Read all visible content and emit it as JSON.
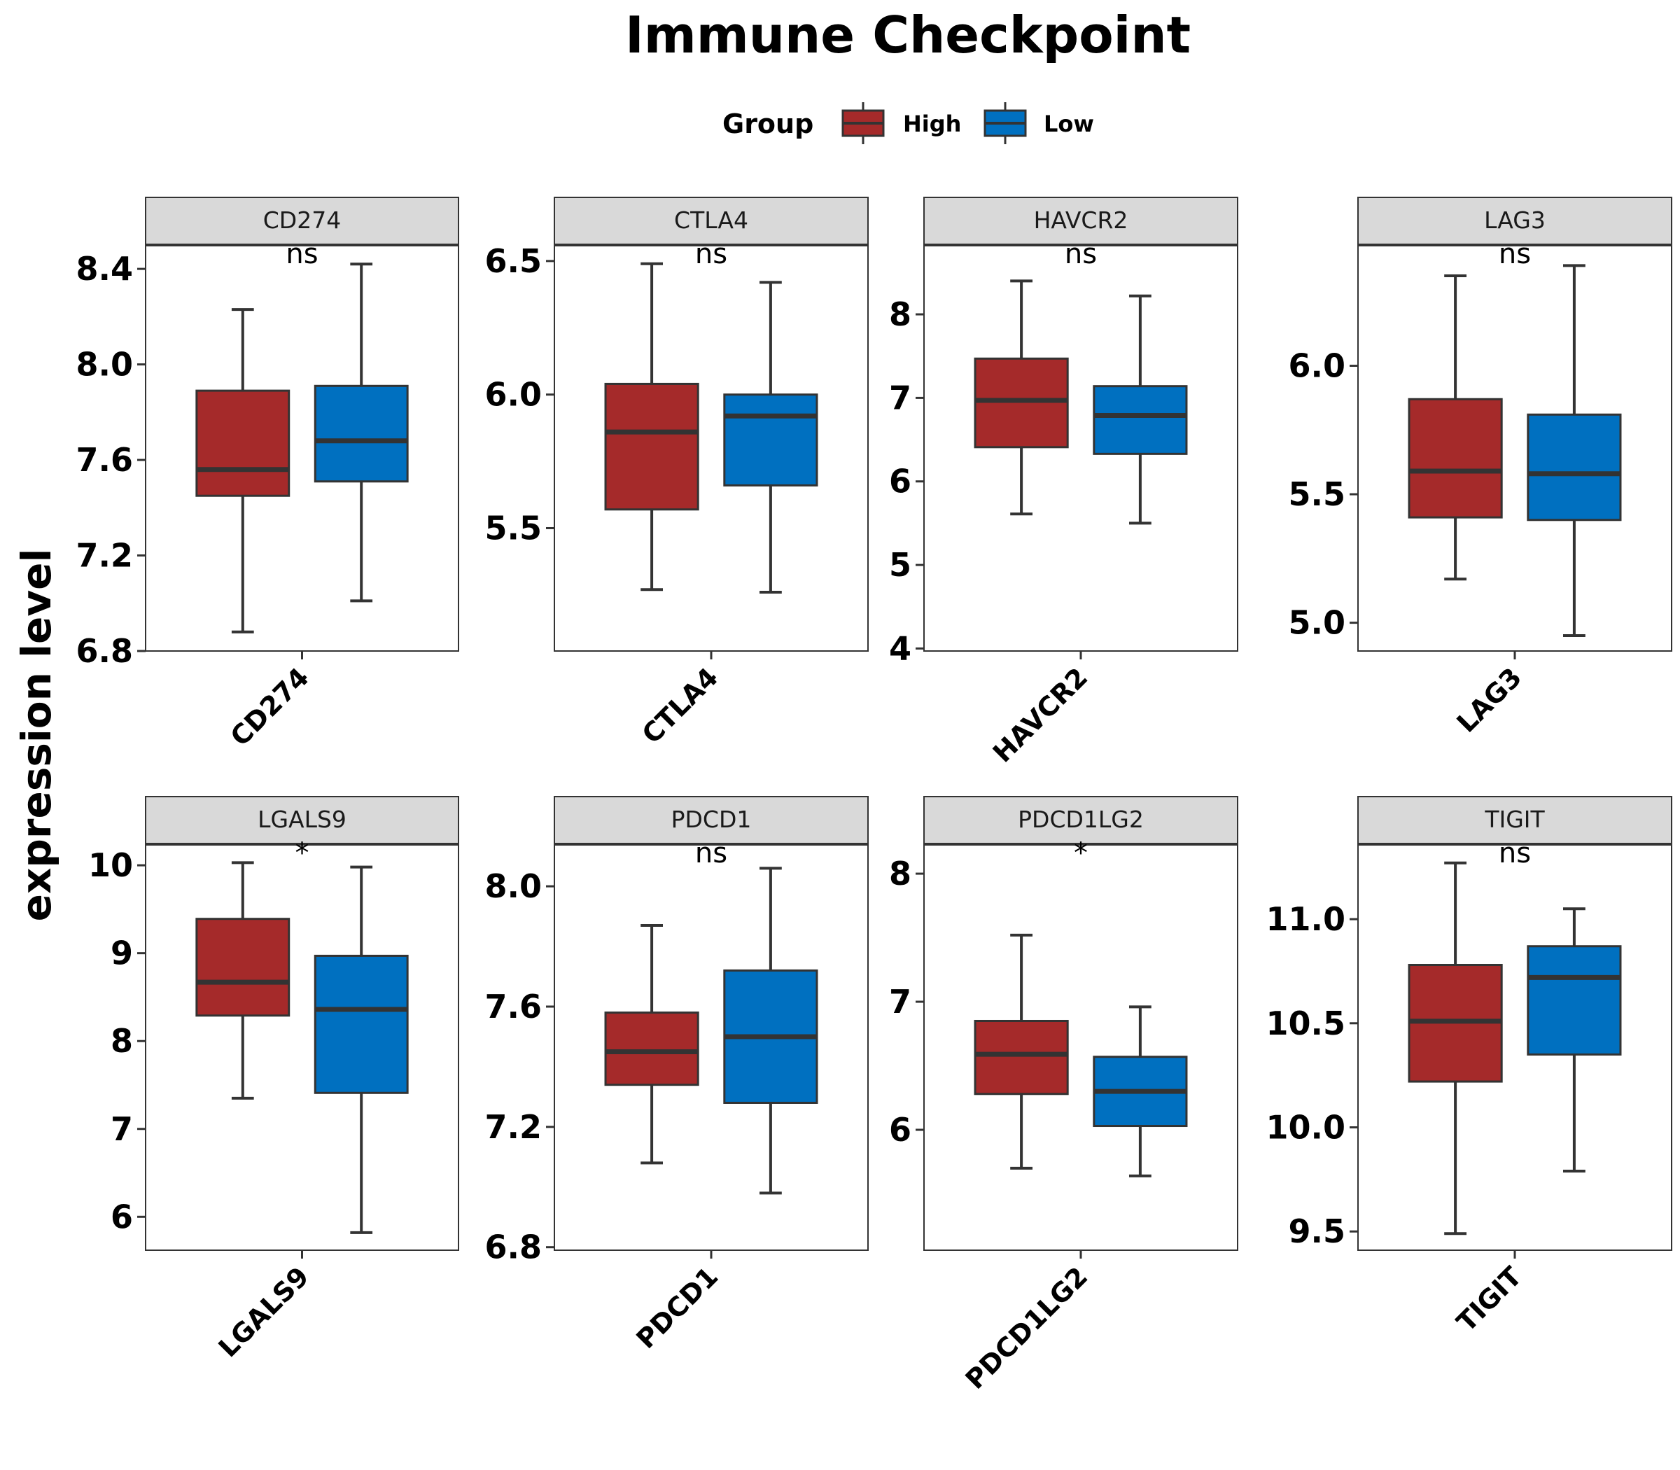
{
  "title": "Immune Checkpoint",
  "legend": {
    "title": "Group",
    "items": [
      {
        "label": "High",
        "color": "#A52A2A"
      },
      {
        "label": "Low",
        "color": "#0070C0"
      }
    ]
  },
  "ylabel": "expression level",
  "colors": {
    "high": "#A52A2A",
    "low": "#0070C0",
    "strip_fill": "#D9D9D9",
    "outline": "#333333"
  },
  "chart_data": {
    "type": "box",
    "title": "Immune Checkpoint",
    "ylabel": "expression level",
    "legend_title": "Group",
    "legend_position": "top",
    "groups": [
      "High",
      "Low"
    ],
    "panels": [
      {
        "gene": "CD274",
        "significance": "ns",
        "ylim": [
          6.8,
          8.5
        ],
        "yticks": [
          6.8,
          7.2,
          7.6,
          8.0,
          8.4
        ],
        "ytick_labels": [
          "6.8",
          "7.2",
          "7.6",
          "8.0",
          "8.4"
        ],
        "boxes": [
          {
            "group": "High",
            "min": 6.88,
            "q1": 7.45,
            "median": 7.56,
            "q3": 7.89,
            "max": 8.23
          },
          {
            "group": "Low",
            "min": 7.01,
            "q1": 7.51,
            "median": 7.68,
            "q3": 7.91,
            "max": 8.42
          }
        ]
      },
      {
        "gene": "CTLA4",
        "significance": "ns",
        "ylim": [
          5.04,
          6.56
        ],
        "yticks": [
          5.5,
          6.0,
          6.5
        ],
        "ytick_labels": [
          "5.5",
          "6.0",
          "6.5"
        ],
        "boxes": [
          {
            "group": "High",
            "min": 5.27,
            "q1": 5.57,
            "median": 5.86,
            "q3": 6.04,
            "max": 6.49
          },
          {
            "group": "Low",
            "min": 5.26,
            "q1": 5.66,
            "median": 5.92,
            "q3": 6.0,
            "max": 6.42
          }
        ]
      },
      {
        "gene": "HAVCR2",
        "significance": "ns",
        "ylim": [
          3.97,
          8.83
        ],
        "yticks": [
          4,
          5,
          6,
          7,
          8
        ],
        "ytick_labels": [
          "4",
          "5",
          "6",
          "7",
          "8"
        ],
        "boxes": [
          {
            "group": "High",
            "min": 5.61,
            "q1": 6.41,
            "median": 6.97,
            "q3": 7.47,
            "max": 8.4
          },
          {
            "group": "Low",
            "min": 5.5,
            "q1": 6.33,
            "median": 6.79,
            "q3": 7.14,
            "max": 8.22
          }
        ]
      },
      {
        "gene": "LAG3",
        "significance": "ns",
        "ylim": [
          4.89,
          6.47
        ],
        "yticks": [
          5.0,
          5.5,
          6.0
        ],
        "ytick_labels": [
          "5.0",
          "5.5",
          "6.0"
        ],
        "boxes": [
          {
            "group": "High",
            "min": 5.17,
            "q1": 5.41,
            "median": 5.59,
            "q3": 5.87,
            "max": 6.35
          },
          {
            "group": "Low",
            "min": 4.95,
            "q1": 5.4,
            "median": 5.58,
            "q3": 5.81,
            "max": 6.39
          }
        ]
      },
      {
        "gene": "LGALS9",
        "significance": "*",
        "ylim": [
          5.62,
          10.24
        ],
        "yticks": [
          6,
          7,
          8,
          9,
          10
        ],
        "ytick_labels": [
          "6",
          "7",
          "8",
          "9",
          "10"
        ],
        "boxes": [
          {
            "group": "High",
            "min": 7.35,
            "q1": 8.29,
            "median": 8.67,
            "q3": 9.39,
            "max": 10.03
          },
          {
            "group": "Low",
            "min": 5.82,
            "q1": 7.41,
            "median": 8.36,
            "q3": 8.97,
            "max": 9.98
          }
        ]
      },
      {
        "gene": "PDCD1",
        "significance": "ns",
        "ylim": [
          6.79,
          8.14
        ],
        "yticks": [
          6.8,
          7.2,
          7.6,
          8.0
        ],
        "ytick_labels": [
          "6.8",
          "7.2",
          "7.6",
          "8.0"
        ],
        "boxes": [
          {
            "group": "High",
            "min": 7.08,
            "q1": 7.34,
            "median": 7.45,
            "q3": 7.58,
            "max": 7.87
          },
          {
            "group": "Low",
            "min": 6.98,
            "q1": 7.28,
            "median": 7.5,
            "q3": 7.72,
            "max": 8.06
          }
        ]
      },
      {
        "gene": "PDCD1LG2",
        "significance": "*",
        "ylim": [
          5.06,
          8.23
        ],
        "yticks": [
          6,
          7,
          8
        ],
        "ytick_labels": [
          "6",
          "7",
          "8"
        ],
        "boxes": [
          {
            "group": "High",
            "min": 5.7,
            "q1": 6.28,
            "median": 6.59,
            "q3": 6.85,
            "max": 7.52
          },
          {
            "group": "Low",
            "min": 5.64,
            "q1": 6.03,
            "median": 6.3,
            "q3": 6.57,
            "max": 6.96
          }
        ]
      },
      {
        "gene": "TIGIT",
        "significance": "ns",
        "ylim": [
          9.41,
          11.36
        ],
        "yticks": [
          9.5,
          10.0,
          10.5,
          11.0
        ],
        "ytick_labels": [
          "9.5",
          "10.0",
          "10.5",
          "11.0"
        ],
        "boxes": [
          {
            "group": "High",
            "min": 9.49,
            "q1": 10.22,
            "median": 10.51,
            "q3": 10.78,
            "max": 11.27
          },
          {
            "group": "Low",
            "min": 9.79,
            "q1": 10.35,
            "median": 10.72,
            "q3": 10.87,
            "max": 11.05
          }
        ]
      }
    ]
  }
}
